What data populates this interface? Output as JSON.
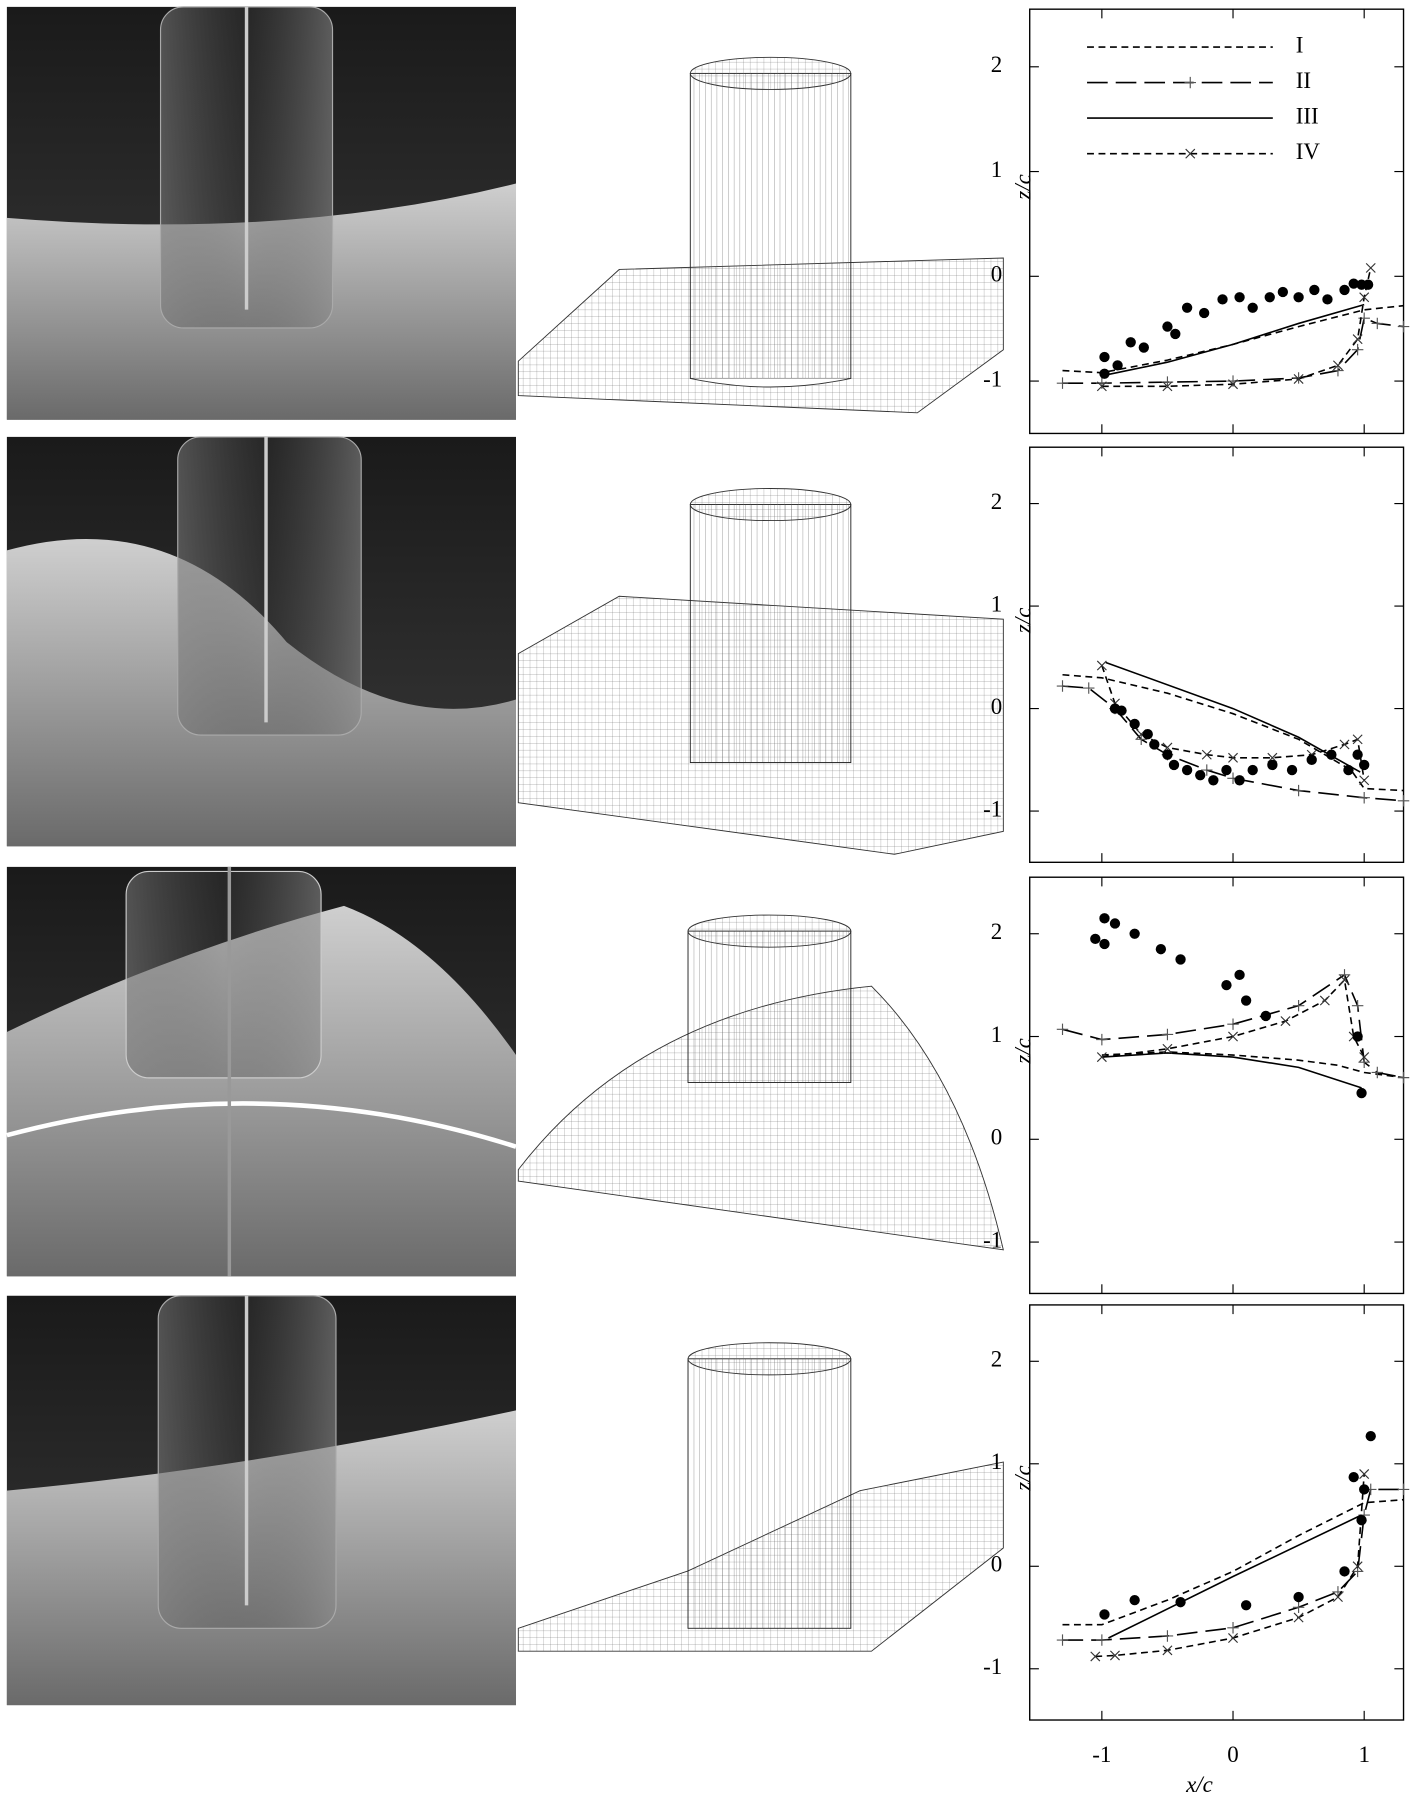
{
  "chart_data": [
    {
      "type": "line",
      "ylabel": "z/c",
      "xlim": [
        -1.55,
        1.3
      ],
      "ylim": [
        -1.5,
        2.55
      ],
      "xticks": [
        -1,
        0,
        1
      ],
      "yticks": [
        -1,
        0,
        1,
        2
      ],
      "show_xtick_labels": false,
      "legend": "upper left",
      "series": [
        {
          "name": "I",
          "color": "#000",
          "dash": "6 4",
          "marker": "none",
          "x": [
            -1.3,
            -1,
            -0.5,
            0,
            0.5,
            1,
            1.3
          ],
          "values": [
            -0.9,
            -0.92,
            -0.8,
            -0.65,
            -0.48,
            -0.32,
            -0.28
          ]
        },
        {
          "name": "II",
          "color": "#000",
          "dash": "18 7",
          "marker": "plus",
          "x": [
            -1.3,
            -1,
            -0.5,
            0,
            0.5,
            0.8,
            0.95,
            1.0,
            1.1,
            1.3
          ],
          "values": [
            -1.02,
            -1.02,
            -1.01,
            -1.0,
            -0.97,
            -0.9,
            -0.7,
            -0.4,
            -0.45,
            -0.48
          ]
        },
        {
          "name": "III",
          "color": "#000",
          "dash": "none",
          "marker": "none",
          "x": [
            -1,
            -0.5,
            0,
            0.5,
            1
          ],
          "values": [
            -0.95,
            -0.82,
            -0.65,
            -0.45,
            -0.27
          ]
        },
        {
          "name": "IV",
          "color": "#000",
          "dash": "6 4",
          "marker": "cross",
          "x": [
            -1,
            -0.5,
            0,
            0.5,
            0.8,
            0.95,
            1.0,
            1.05
          ],
          "values": [
            -1.05,
            -1.05,
            -1.03,
            -0.98,
            -0.85,
            -0.6,
            -0.2,
            0.08
          ]
        },
        {
          "color": "#000",
          "dash": "skip",
          "marker": "dot",
          "x": [
            -0.98,
            -0.98,
            -0.88,
            -0.78,
            -0.68,
            -0.5,
            -0.44,
            -0.35,
            -0.22,
            -0.08,
            0.05,
            0.15,
            0.28,
            0.38,
            0.5,
            0.62,
            0.72,
            0.85,
            0.92,
            0.98,
            1.03
          ],
          "values": [
            -0.77,
            -0.93,
            -0.85,
            -0.63,
            -0.68,
            -0.48,
            -0.55,
            -0.3,
            -0.35,
            -0.22,
            -0.2,
            -0.3,
            -0.2,
            -0.15,
            -0.2,
            -0.13,
            -0.22,
            -0.13,
            -0.07,
            -0.08,
            -0.08
          ]
        }
      ]
    },
    {
      "type": "line",
      "ylabel": "z/c",
      "xlim": [
        -1.55,
        1.3
      ],
      "ylim": [
        -1.5,
        2.55
      ],
      "xticks": [
        -1,
        0,
        1
      ],
      "yticks": [
        -1,
        0,
        1,
        2
      ],
      "show_xtick_labels": false,
      "series": [
        {
          "name": "I",
          "color": "#000",
          "dash": "6 4",
          "marker": "none",
          "x": [
            -1.3,
            -1,
            -0.5,
            0,
            0.5,
            0.9,
            1.0,
            1.3
          ],
          "values": [
            0.33,
            0.3,
            0.15,
            -0.05,
            -0.3,
            -0.6,
            -0.78,
            -0.8
          ]
        },
        {
          "name": "II",
          "color": "#000",
          "dash": "18 7",
          "marker": "plus",
          "x": [
            -1.3,
            -1.1,
            -0.9,
            -0.7,
            -0.5,
            -0.2,
            0,
            0.5,
            1,
            1.3
          ],
          "values": [
            0.22,
            0.2,
            0.0,
            -0.3,
            -0.45,
            -0.6,
            -0.68,
            -0.8,
            -0.87,
            -0.9
          ]
        },
        {
          "name": "III",
          "color": "#000",
          "dash": "none",
          "marker": "none",
          "x": [
            -0.97,
            0,
            0.5,
            0.97
          ],
          "values": [
            0.45,
            0.0,
            -0.28,
            -0.62
          ]
        },
        {
          "name": "IV",
          "color": "#000",
          "dash": "6 4",
          "marker": "cross",
          "x": [
            -1,
            -0.9,
            -0.7,
            -0.5,
            -0.2,
            0,
            0.3,
            0.6,
            0.85,
            0.95,
            1.0
          ],
          "values": [
            0.42,
            0.05,
            -0.25,
            -0.38,
            -0.45,
            -0.48,
            -0.48,
            -0.45,
            -0.35,
            -0.3,
            -0.7
          ]
        },
        {
          "color": "#000",
          "dash": "skip",
          "marker": "dot",
          "x": [
            -0.9,
            -0.85,
            -0.75,
            -0.65,
            -0.6,
            -0.5,
            -0.45,
            -0.35,
            -0.25,
            -0.15,
            -0.05,
            0.05,
            0.15,
            0.3,
            0.45,
            0.6,
            0.75,
            0.88,
            0.95,
            1.0
          ],
          "values": [
            0.0,
            -0.02,
            -0.15,
            -0.25,
            -0.35,
            -0.45,
            -0.55,
            -0.6,
            -0.65,
            -0.7,
            -0.6,
            -0.7,
            -0.6,
            -0.55,
            -0.6,
            -0.5,
            -0.45,
            -0.6,
            -0.45,
            -0.55
          ]
        }
      ]
    },
    {
      "type": "line",
      "ylabel": "z/c",
      "xlim": [
        -1.55,
        1.3
      ],
      "ylim": [
        -1.5,
        2.55
      ],
      "xticks": [
        -1,
        0,
        1
      ],
      "yticks": [
        -1,
        0,
        1,
        2
      ],
      "show_xtick_labels": false,
      "series": [
        {
          "name": "I",
          "color": "#000",
          "dash": "6 4",
          "marker": "none",
          "x": [
            -1,
            -0.5,
            0,
            0.5,
            0.8,
            1.0,
            1.3
          ],
          "values": [
            0.82,
            0.85,
            0.82,
            0.77,
            0.72,
            0.65,
            0.6
          ]
        },
        {
          "name": "II",
          "color": "#000",
          "dash": "18 7",
          "marker": "plus",
          "x": [
            -1.3,
            -1,
            -0.5,
            0,
            0.5,
            0.85,
            0.95,
            1.0,
            1.1,
            1.3
          ],
          "values": [
            1.07,
            0.97,
            1.02,
            1.12,
            1.3,
            1.6,
            1.3,
            0.75,
            0.65,
            0.6
          ]
        },
        {
          "name": "III",
          "color": "#000",
          "dash": "none",
          "marker": "none",
          "x": [
            -1,
            -0.5,
            0,
            0.5,
            0.98
          ],
          "values": [
            0.8,
            0.84,
            0.8,
            0.7,
            0.5
          ]
        },
        {
          "name": "IV",
          "color": "#000",
          "dash": "6 4",
          "marker": "cross",
          "x": [
            -1,
            -0.5,
            0,
            0.4,
            0.7,
            0.85,
            0.92,
            1.0
          ],
          "values": [
            0.8,
            0.88,
            1.0,
            1.15,
            1.35,
            1.55,
            1.0,
            0.8
          ]
        },
        {
          "color": "#000",
          "dash": "skip",
          "marker": "dot",
          "x": [
            -1.05,
            -0.98,
            -0.98,
            -0.9,
            -0.75,
            -0.55,
            -0.4,
            -0.05,
            0.05,
            0.1,
            0.25,
            0.95,
            0.98
          ],
          "values": [
            1.95,
            2.15,
            1.9,
            2.1,
            2.0,
            1.85,
            1.75,
            1.5,
            1.6,
            1.35,
            1.2,
            1.0,
            0.45
          ]
        }
      ]
    },
    {
      "type": "line",
      "ylabel": "z/c",
      "xlabel": "x/c",
      "xlim": [
        -1.55,
        1.3
      ],
      "ylim": [
        -1.5,
        2.55
      ],
      "xticks": [
        -1,
        0,
        1
      ],
      "yticks": [
        -1,
        0,
        1,
        2
      ],
      "show_xtick_labels": true,
      "series": [
        {
          "name": "I",
          "color": "#000",
          "dash": "6 4",
          "marker": "none",
          "x": [
            -1.3,
            -1,
            -0.5,
            0,
            0.5,
            1.0,
            1.3
          ],
          "values": [
            -0.57,
            -0.57,
            -0.33,
            -0.05,
            0.3,
            0.62,
            0.65
          ]
        },
        {
          "name": "II",
          "color": "#000",
          "dash": "18 7",
          "marker": "plus",
          "x": [
            -1.3,
            -1,
            -0.5,
            0,
            0.5,
            0.8,
            0.95,
            1.0,
            1.05,
            1.3
          ],
          "values": [
            -0.72,
            -0.72,
            -0.68,
            -0.6,
            -0.4,
            -0.25,
            -0.05,
            0.5,
            0.75,
            0.75
          ]
        },
        {
          "name": "III",
          "color": "#000",
          "dash": "none",
          "marker": "none",
          "x": [
            -0.95,
            0,
            0.98
          ],
          "values": [
            -0.7,
            -0.1,
            0.5
          ]
        },
        {
          "name": "IV",
          "color": "#000",
          "dash": "6 4",
          "marker": "cross",
          "x": [
            -1.05,
            -0.9,
            -0.5,
            0,
            0.5,
            0.8,
            0.95,
            1.0
          ],
          "values": [
            -0.88,
            -0.87,
            -0.82,
            -0.7,
            -0.5,
            -0.3,
            0.0,
            0.9
          ]
        },
        {
          "color": "#000",
          "dash": "skip",
          "marker": "dot",
          "x": [
            -0.98,
            -0.75,
            -0.4,
            0.1,
            0.5,
            0.85,
            0.92,
            0.98,
            1.0,
            1.05
          ],
          "values": [
            -0.47,
            -0.33,
            -0.35,
            -0.38,
            -0.3,
            -0.05,
            0.87,
            0.45,
            0.75,
            1.27
          ]
        }
      ]
    }
  ]
}
